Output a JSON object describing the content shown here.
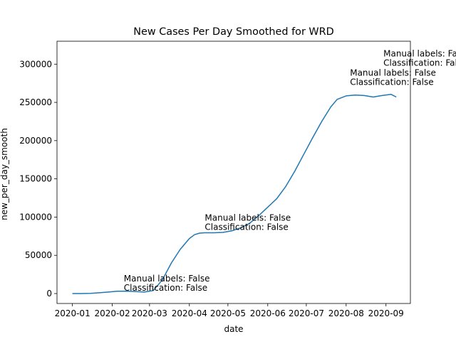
{
  "chart_data": {
    "type": "line",
    "title": "New Cases Per Day Smoothed for WRD",
    "xlabel": "date",
    "ylabel": "new_per_day_smooth",
    "xlim": [
      "2019-12-20",
      "2020-09-20"
    ],
    "ylim": [
      -13000,
      330000
    ],
    "x_ticks": [
      "2020-01-01",
      "2020-02-01",
      "2020-03-01",
      "2020-04-01",
      "2020-05-01",
      "2020-06-01",
      "2020-07-01",
      "2020-08-01",
      "2020-09-01"
    ],
    "x_tick_labels": [
      "2020-01",
      "2020-02",
      "2020-03",
      "2020-04",
      "2020-05",
      "2020-06",
      "2020-07",
      "2020-08",
      "2020-09"
    ],
    "y_ticks": [
      0,
      50000,
      100000,
      150000,
      200000,
      250000,
      300000
    ],
    "y_tick_labels": [
      "0",
      "50000",
      "100000",
      "150000",
      "200000",
      "250000",
      "300000"
    ],
    "grid": false,
    "legend": null,
    "line_color": "#1f77b4",
    "series": [
      {
        "x": [
          "2020-01-01",
          "2020-01-08",
          "2020-01-15",
          "2020-01-22",
          "2020-01-29",
          "2020-02-05",
          "2020-02-12",
          "2020-02-19",
          "2020-02-26",
          "2020-03-04",
          "2020-03-11",
          "2020-03-18",
          "2020-03-25",
          "2020-04-01",
          "2020-04-05",
          "2020-04-09",
          "2020-04-13",
          "2020-04-20",
          "2020-04-27",
          "2020-05-04",
          "2020-05-11",
          "2020-05-18",
          "2020-05-25",
          "2020-06-01",
          "2020-06-08",
          "2020-06-15",
          "2020-06-22",
          "2020-06-29",
          "2020-07-06",
          "2020-07-13",
          "2020-07-20",
          "2020-07-25",
          "2020-08-01",
          "2020-08-08",
          "2020-08-15",
          "2020-08-22",
          "2020-08-29",
          "2020-09-05",
          "2020-09-09"
        ],
        "y": [
          0,
          0,
          200,
          1000,
          2000,
          3000,
          3200,
          2500,
          2000,
          4000,
          18000,
          40000,
          58000,
          72000,
          77000,
          79000,
          79500,
          79500,
          80000,
          82000,
          86000,
          92000,
          102000,
          113000,
          124000,
          140000,
          160000,
          182000,
          204000,
          225000,
          244000,
          254000,
          258500,
          259500,
          259000,
          257000,
          259000,
          260500,
          257000
        ]
      }
    ],
    "annotations": [
      {
        "x": "2020-02-10",
        "y": 3500,
        "lines": [
          "Manual labels: False",
          "Classification: False"
        ]
      },
      {
        "x": "2020-04-13",
        "y": 83000,
        "lines": [
          "Manual labels: False",
          "Classification: False"
        ]
      },
      {
        "x": "2020-08-04",
        "y": 273000,
        "lines": [
          "Manual labels: False",
          "Classification: False"
        ]
      },
      {
        "x": "2020-08-30",
        "y": 298000,
        "lines": [
          "Manual labels: False",
          "Classification: False"
        ]
      }
    ]
  }
}
